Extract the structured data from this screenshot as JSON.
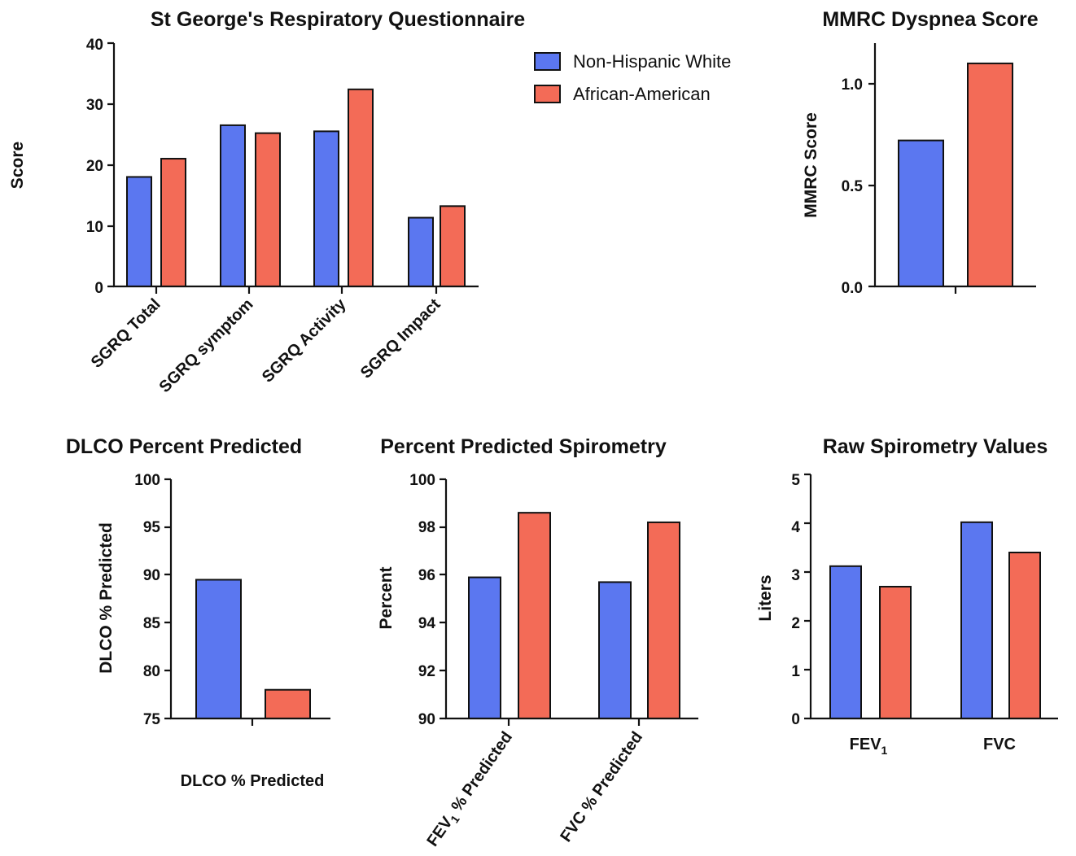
{
  "colors": {
    "non_hispanic_white": "#5b77f0",
    "african_american": "#f36b57"
  },
  "legend": [
    "Non-Hispanic White",
    "African-American"
  ],
  "chart_data": [
    {
      "id": "sgrq",
      "type": "bar",
      "title": "St George's Respiratory Questionnaire",
      "ylabel": "Score",
      "xlabel": "",
      "ylim": [
        0,
        40
      ],
      "yticks": [
        "0",
        "10",
        "20",
        "30",
        "40"
      ],
      "categories": [
        "SGRQ Total",
        "SGRQ symptom",
        "SGRQ Activity",
        "SGRQ Impact"
      ],
      "series": [
        {
          "name": "Non-Hispanic White",
          "values": [
            18,
            26.5,
            25.5,
            11.3
          ]
        },
        {
          "name": "African-American",
          "values": [
            21,
            25.2,
            32.4,
            13.2
          ]
        }
      ]
    },
    {
      "id": "mmrc",
      "type": "bar",
      "title": "MMRC Dyspnea Score",
      "ylabel": "MMRC Score",
      "xlabel": "",
      "ylim": [
        0,
        1.2
      ],
      "yticks": [
        "0.0",
        "0.5",
        "1.0"
      ],
      "categories": [
        ""
      ],
      "series": [
        {
          "name": "Non-Hispanic White",
          "values": [
            0.72
          ]
        },
        {
          "name": "African-American",
          "values": [
            1.1
          ]
        }
      ]
    },
    {
      "id": "dlco",
      "type": "bar",
      "title": "DLCO Percent Predicted",
      "ylabel": "DLCO % Predicted",
      "xlabel": "DLCO % Predicted",
      "ylim": [
        75,
        100
      ],
      "yticks": [
        "75",
        "80",
        "85",
        "90",
        "95",
        "100"
      ],
      "categories": [
        ""
      ],
      "series": [
        {
          "name": "Non-Hispanic White",
          "values": [
            89.5
          ]
        },
        {
          "name": "African-American",
          "values": [
            78
          ]
        }
      ]
    },
    {
      "id": "pps",
      "type": "bar",
      "title": "Percent Predicted Spirometry",
      "ylabel": "Percent",
      "xlabel": "",
      "ylim": [
        90,
        100
      ],
      "yticks": [
        "90",
        "92",
        "94",
        "96",
        "98",
        "100"
      ],
      "categories": [
        "FEV1 % Predicted",
        "FVC % Predicted"
      ],
      "series": [
        {
          "name": "Non-Hispanic White",
          "values": [
            95.9,
            95.7
          ]
        },
        {
          "name": "African-American",
          "values": [
            98.6,
            98.2
          ]
        }
      ]
    },
    {
      "id": "raw",
      "type": "bar",
      "title": "Raw Spirometry Values",
      "ylabel": "Liters",
      "xlabel": "",
      "ylim": [
        0,
        5
      ],
      "yticks": [
        "0",
        "1",
        "2",
        "3",
        "4",
        "5"
      ],
      "categories": [
        "FEV1",
        "FVC"
      ],
      "series": [
        {
          "name": "Non-Hispanic White",
          "values": [
            3.12,
            4.02
          ]
        },
        {
          "name": "African-American",
          "values": [
            2.7,
            3.4
          ]
        }
      ]
    }
  ]
}
